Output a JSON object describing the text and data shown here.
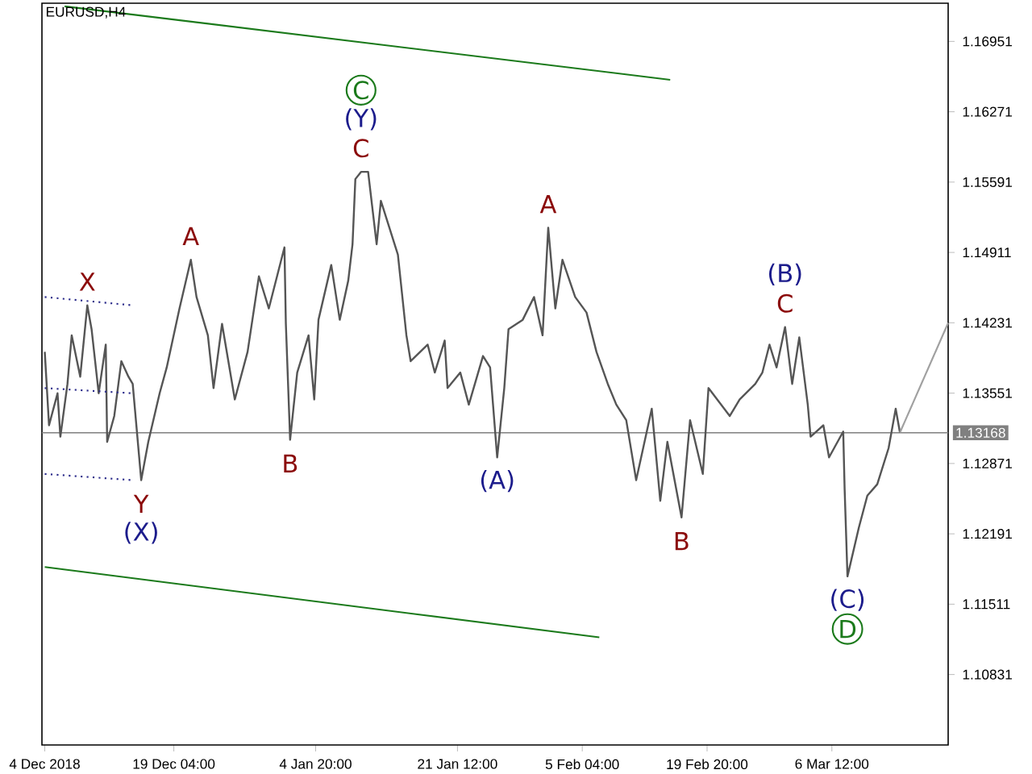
{
  "chart_data": {
    "type": "line",
    "title": "EURUSD,H4",
    "xlim": [
      "2018-12-03T16:00",
      "2019-03-20T04:00"
    ],
    "ylim": [
      1.1015,
      1.1732
    ],
    "xticks": [
      {
        "value": "2018-12-04",
        "label": "4 Dec 2018"
      },
      {
        "value": "2018-12-19T04:00",
        "label": "19 Dec 04:00"
      },
      {
        "value": "2019-01-04T20:00",
        "label": "4 Jan 20:00"
      },
      {
        "value": "2019-01-21T12:00",
        "label": "21 Jan 12:00"
      },
      {
        "value": "2019-02-05T04:00",
        "label": "5 Feb 04:00"
      },
      {
        "value": "2019-02-19T20:00",
        "label": "19 Feb 20:00"
      },
      {
        "value": "2019-03-06T12:00",
        "label": "6 Mar 12:00"
      }
    ],
    "yticks": [
      1.16951,
      1.16271,
      1.15591,
      1.14911,
      1.14231,
      1.13551,
      1.12871,
      1.12191,
      1.11511,
      1.10831
    ],
    "series": [
      {
        "color": "#555555",
        "x": [
          "2018-12-04T00:00",
          "2018-12-04T12:00",
          "2018-12-05T12:00",
          "2018-12-05T20:00",
          "2018-12-06T16:00",
          "2018-12-07T04:00",
          "2018-12-08T04:00",
          "2018-12-09T00:00",
          "2018-12-09T12:00",
          "2018-12-10T08:00",
          "2018-12-11T04:00",
          "2018-12-11T08:00",
          "2018-12-12T04:00",
          "2018-12-13T00:00",
          "2018-12-13T20:00",
          "2018-12-14T08:00",
          "2018-12-15T08:00",
          "2018-12-16T04:00",
          "2018-12-17T12:00",
          "2018-12-18T08:00",
          "2018-12-19T20:00",
          "2018-12-21T04:00",
          "2018-12-21T20:00",
          "2018-12-23T04:00",
          "2018-12-23T20:00",
          "2018-12-24T20:00",
          "2018-12-26T08:00",
          "2018-12-27T20:00",
          "2018-12-29T04:00",
          "2018-12-30T08:00",
          "2019-01-01T04:00",
          "2019-01-01T08:00",
          "2019-01-01T20:00",
          "2019-01-02T16:00",
          "2019-01-04T00:00",
          "2019-01-04T16:00",
          "2019-01-05T04:00",
          "2019-01-06T16:00",
          "2019-01-07T16:00",
          "2019-01-08T16:00",
          "2019-01-09T04:00",
          "2019-01-09T12:00",
          "2019-01-10T04:00",
          "2019-01-11T00:00",
          "2019-01-12T00:00",
          "2019-01-12T12:00",
          "2019-01-14T12:00",
          "2019-01-15T12:00",
          "2019-01-16T00:00",
          "2019-01-18T00:00",
          "2019-01-18T20:00",
          "2019-01-20T00:00",
          "2019-01-20T08:00",
          "2019-01-21T20:00",
          "2019-01-22T20:00",
          "2019-01-24T12:00",
          "2019-01-25T08:00",
          "2019-01-26T04:00",
          "2019-01-27T00:00",
          "2019-01-27T12:00",
          "2019-01-29T04:00",
          "2019-01-30T12:00",
          "2019-01-31T12:00",
          "2019-02-01T04:00",
          "2019-02-02T00:00",
          "2019-02-02T20:00",
          "2019-02-04T08:00",
          "2019-02-05T16:00",
          "2019-02-06T20:00",
          "2019-02-08T04:00",
          "2019-02-09T04:00",
          "2019-02-10T08:00",
          "2019-02-11T12:00",
          "2019-02-13T08:00",
          "2019-02-14T08:00",
          "2019-02-15T04:00",
          "2019-02-16T20:00",
          "2019-02-17T20:00",
          "2019-02-19T08:00",
          "2019-02-20T00:00",
          "2019-02-22T12:00",
          "2019-02-23T16:00",
          "2019-02-25T12:00",
          "2019-02-26T08:00",
          "2019-02-27T04:00",
          "2019-02-28T00:00",
          "2019-03-01T00:00",
          "2019-03-01T20:00",
          "2019-03-02T16:00",
          "2019-03-03T16:00",
          "2019-03-04T00:00",
          "2019-03-05T12:00",
          "2019-03-06T04:00",
          "2019-03-07T20:00",
          "2019-03-08T00:00",
          "2019-03-08T08:00",
          "2019-03-09T16:00",
          "2019-03-10T16:00",
          "2019-03-11T20:00",
          "2019-03-13T04:00",
          "2019-03-14T00:00",
          "2019-03-14T12:00"
        ],
        "values": [
          1.1395,
          1.1324,
          1.1355,
          1.1313,
          1.1364,
          1.1411,
          1.1371,
          1.144,
          1.1417,
          1.1355,
          1.1402,
          1.1308,
          1.1333,
          1.1386,
          1.1371,
          1.1364,
          1.1271,
          1.1308,
          1.1355,
          1.138,
          1.1437,
          1.1484,
          1.1448,
          1.1411,
          1.136,
          1.1422,
          1.1349,
          1.1395,
          1.1468,
          1.1437,
          1.1496,
          1.1422,
          1.131,
          1.1375,
          1.1411,
          1.1349,
          1.1426,
          1.1479,
          1.1426,
          1.1464,
          1.1499,
          1.1562,
          1.1569,
          1.1569,
          1.1499,
          1.1541,
          1.1489,
          1.1411,
          1.1386,
          1.1402,
          1.1375,
          1.1406,
          1.136,
          1.1375,
          1.1344,
          1.1391,
          1.138,
          1.1293,
          1.136,
          1.1417,
          1.1426,
          1.1448,
          1.1411,
          1.1515,
          1.1437,
          1.1484,
          1.1448,
          1.1433,
          1.1395,
          1.1364,
          1.1344,
          1.1329,
          1.1271,
          1.134,
          1.1251,
          1.1308,
          1.1235,
          1.1329,
          1.1277,
          1.136,
          1.1333,
          1.1349,
          1.1364,
          1.1375,
          1.1402,
          1.138,
          1.1419,
          1.1364,
          1.1409,
          1.1344,
          1.1313,
          1.1324,
          1.1293,
          1.1318,
          1.1262,
          1.1178,
          1.1225,
          1.1256,
          1.1267,
          1.1302,
          1.134,
          1.1317
        ]
      },
      {
        "color": "#a0a0a0",
        "x": [
          "2019-03-14T12:00",
          "2019-03-20T04:00"
        ],
        "values": [
          1.1317,
          1.1423
        ]
      },
      {
        "color": "#1b7a1b",
        "x": [
          "2018-12-06T08:00",
          "2019-02-15T12:00"
        ],
        "values": [
          1.1729,
          1.1658
        ]
      },
      {
        "color": "#1b7a1b",
        "x": [
          "2018-12-04T00:00",
          "2019-02-07T04:00"
        ],
        "values": [
          1.1187,
          1.1119
        ]
      },
      {
        "color": "#2a2a8a",
        "line_style": "dotted",
        "x": [
          "2018-12-04T00:00",
          "2018-12-14T08:00"
        ],
        "values": [
          1.1448,
          1.144
        ]
      },
      {
        "color": "#2a2a8a",
        "line_style": "dotted",
        "x": [
          "2018-12-04T00:00",
          "2018-12-14T08:00"
        ],
        "values": [
          1.136,
          1.1355
        ]
      },
      {
        "color": "#2a2a8a",
        "line_style": "dotted",
        "x": [
          "2018-12-04T00:00",
          "2018-12-14T08:00"
        ],
        "values": [
          1.1277,
          1.1271
        ]
      }
    ],
    "ref_lines": [
      {
        "axis": "y",
        "value": 1.13168,
        "label": "1.13168",
        "color": "#808080"
      }
    ],
    "annotations": [
      {
        "text": "X",
        "x": "2018-12-09T00:00",
        "y": 1.144
      },
      {
        "text": "Y",
        "x": "2018-12-15T08:00",
        "y": 1.1271
      },
      {
        "text": "(X)",
        "x": "2018-12-15T08:00",
        "y": 1.1271
      },
      {
        "text": "A",
        "x": "2018-12-21T04:00",
        "y": 1.1484
      },
      {
        "text": "B",
        "x": "2019-01-01T20:00",
        "y": 1.131
      },
      {
        "text": "(Y)",
        "x": "2019-01-10T04:00",
        "y": 1.1569
      },
      {
        "text": "C",
        "x": "2019-01-10T04:00",
        "y": 1.1569
      },
      "C",
      {
        "text": "(A)",
        "x": "2019-01-26T04:00",
        "y": 1.1293
      },
      {
        "text": "A",
        "x": "2019-02-01T04:00",
        "y": 1.1515
      },
      {
        "text": "B",
        "x": "2019-02-16T20:00",
        "y": 1.1235
      },
      {
        "text": "(B)",
        "x": "2019-03-01T00:00",
        "y": 1.1419
      },
      {
        "text": "C",
        "x": "2019-03-01T00:00",
        "y": 1.1419
      },
      {
        "text": "(C)",
        "x": "2019-03-08T08:00",
        "y": 1.1178
      },
      "D"
    ]
  }
}
